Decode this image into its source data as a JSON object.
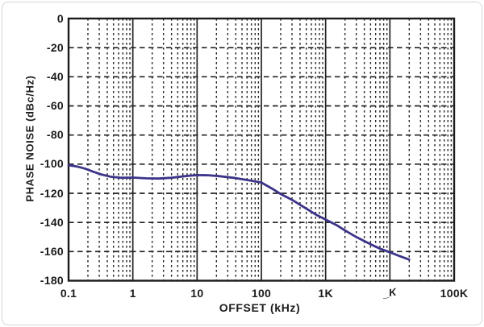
{
  "colors": {
    "background": "#ffffff",
    "frame_border": "#d6d6d6",
    "grid": "#232323",
    "plot_border": "#1c1c1c",
    "curve": "#3c3489",
    "text": "#1b1b1b"
  },
  "axis_titles": {
    "y": "PHASE NOISE (dBc/Hz)",
    "x": "OFFSET (kHz)"
  },
  "chart_data": {
    "type": "line",
    "title": "",
    "xlabel": "OFFSET (kHz)",
    "ylabel": "PHASE NOISE (dBc/Hz)",
    "x_scale": "log",
    "y_scale": "linear",
    "xlim": [
      0.1,
      100000
    ],
    "ylim": [
      -180,
      0
    ],
    "grid": "dashed horizontal lines every 20 dB; dashed minor log verticals; solid decade verticals",
    "legend": "none",
    "x_ticks": [
      {
        "value": 0.1,
        "label": "0.1"
      },
      {
        "value": 1,
        "label": "1"
      },
      {
        "value": 10,
        "label": "10"
      },
      {
        "value": 100,
        "label": "100"
      },
      {
        "value": 1000,
        "label": "1K"
      },
      {
        "value": 10000,
        "label": "_K",
        "garbled": true
      },
      {
        "value": 100000,
        "label": "100K"
      }
    ],
    "y_ticks": [
      {
        "value": 0,
        "label": "0"
      },
      {
        "value": -20,
        "label": "-20"
      },
      {
        "value": -40,
        "label": "-40"
      },
      {
        "value": -60,
        "label": "-60"
      },
      {
        "value": -80,
        "label": "-80"
      },
      {
        "value": -100,
        "label": "-100"
      },
      {
        "value": -120,
        "label": "-120"
      },
      {
        "value": -140,
        "label": "-140"
      },
      {
        "value": -160,
        "label": "-160"
      },
      {
        "value": -180,
        "label": "-180"
      }
    ],
    "series": [
      {
        "name": "phase-noise-curve",
        "color": "#3c3489",
        "points": [
          [
            0.1,
            -100.7
          ],
          [
            0.135,
            -101.6
          ],
          [
            0.18,
            -103.0
          ],
          [
            0.24,
            -105.1
          ],
          [
            0.32,
            -107.0
          ],
          [
            0.45,
            -108.6
          ],
          [
            0.65,
            -109.3
          ],
          [
            1,
            -109.2
          ],
          [
            1.6,
            -109.7
          ],
          [
            2.5,
            -109.9
          ],
          [
            4,
            -109.3
          ],
          [
            6.5,
            -108.2
          ],
          [
            10,
            -107.5
          ],
          [
            15,
            -107.6
          ],
          [
            22,
            -108.2
          ],
          [
            37,
            -109.4
          ],
          [
            67,
            -111.2
          ],
          [
            100,
            -112.6
          ],
          [
            150,
            -117.0
          ],
          [
            200,
            -120.5
          ],
          [
            300,
            -124.5
          ],
          [
            500,
            -130.5
          ],
          [
            700,
            -134.5
          ],
          [
            1000,
            -138.0
          ],
          [
            1500,
            -142.0
          ],
          [
            2000,
            -145.5
          ],
          [
            3000,
            -150.0
          ],
          [
            5000,
            -155.0
          ],
          [
            7000,
            -158.0
          ],
          [
            10000,
            -160.5
          ],
          [
            14000,
            -163.0
          ],
          [
            20000,
            -165.5
          ]
        ]
      }
    ]
  }
}
